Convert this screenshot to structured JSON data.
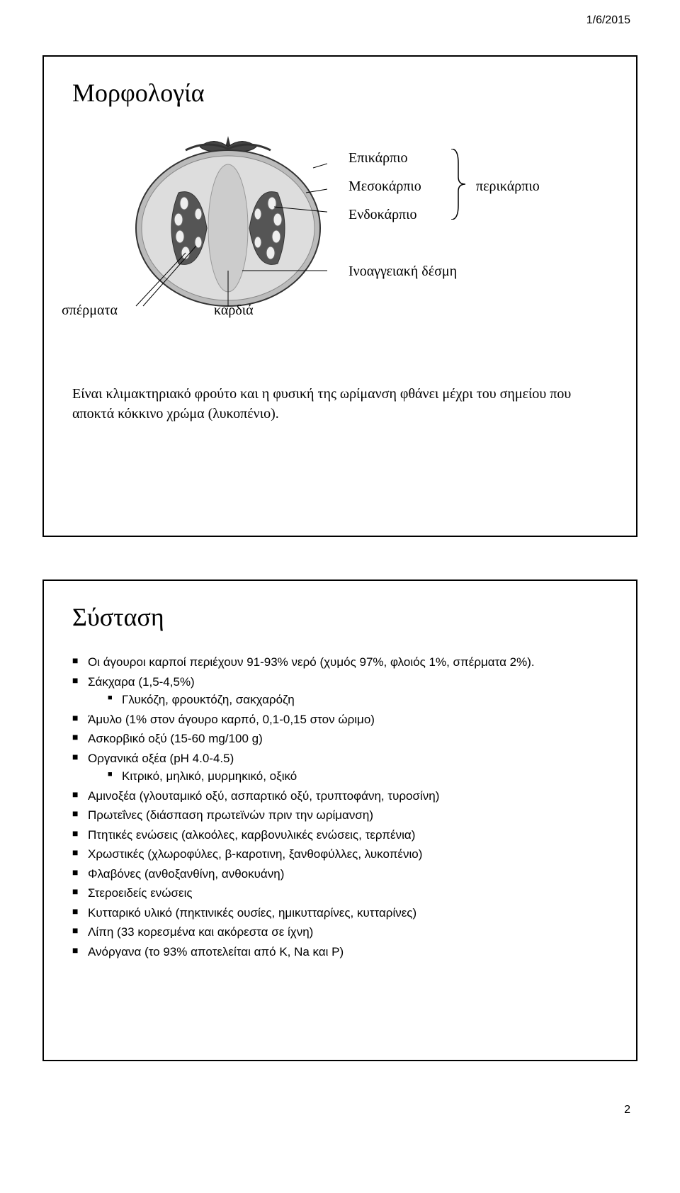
{
  "date": "1/6/2015",
  "page_number": "2",
  "slide1": {
    "title": "Μορφολογία",
    "labels": {
      "epikarpio": "Επικάρπιο",
      "mesokarpio": "Μεσοκάρπιο",
      "endokarpio": "Ενδοκάρπιο",
      "perikarpio": "περικάρπιο",
      "inoaggiaki": "Ινοαγγειακή δέσμη",
      "spermata": "σπέρματα",
      "kardia": "καρδιά"
    },
    "caption": "Είναι κλιμακτηριακό φρούτο και η φυσική της ωρίμανση φθάνει μέχρι του σημείου που αποκτά κόκκινο χρώμα (λυκοπένιο).",
    "colors": {
      "border": "#000000",
      "text": "#000000",
      "background": "#ffffff"
    }
  },
  "slide2": {
    "title": "Σύσταση",
    "bullets": [
      {
        "text": "Οι άγουροι καρποί περιέχουν 91-93% νερό (χυμός 97%, φλοιός 1%, σπέρματα 2%)."
      },
      {
        "text": "Σάκχαρα (1,5-4,5%)",
        "sub": [
          {
            "text": "Γλυκόζη, φρουκτόζη, σακχαρόζη"
          }
        ]
      },
      {
        "text": "Άμυλο (1% στον άγουρο καρπό, 0,1-0,15 στον ώριμο)"
      },
      {
        "text": "Ασκορβικό οξύ (15-60 mg/100 g)"
      },
      {
        "text": "Οργανικά οξέα (pH 4.0-4.5)",
        "sub": [
          {
            "text": "Κιτρικό, μηλικό, μυρμηκικό, οξικό"
          }
        ]
      },
      {
        "text": "Αμινοξέα (γλουταμικό οξύ, ασπαρτικό οξύ, τρυπτοφάνη, τυροσίνη)"
      },
      {
        "text": "Πρωτεΐνες (διάσπαση πρωτεϊνών πριν την ωρίμανση)"
      },
      {
        "text": "Πτητικές ενώσεις (αλκοόλες, καρβονυλικές ενώσεις, τερπένια)"
      },
      {
        "text": "Χρωστικές (χλωροφύλες, β-καροτινη, ξανθοφύλλες, λυκοπένιο)"
      },
      {
        "text": "Φλαβόνες (ανθοξανθίνη, ανθοκυάνη)"
      },
      {
        "text": "Στεροειδείς ενώσεις"
      },
      {
        "text": "Κυτταρικό υλικό (πηκτινικές ουσίες, ημικυτταρίνες, κυτταρίνες)"
      },
      {
        "text": "Λίπη (33 κορεσμένα και ακόρεστα σε ίχνη)"
      },
      {
        "text": "Ανόργανα (το 93% αποτελείται από Κ, Na και P)"
      }
    ]
  }
}
